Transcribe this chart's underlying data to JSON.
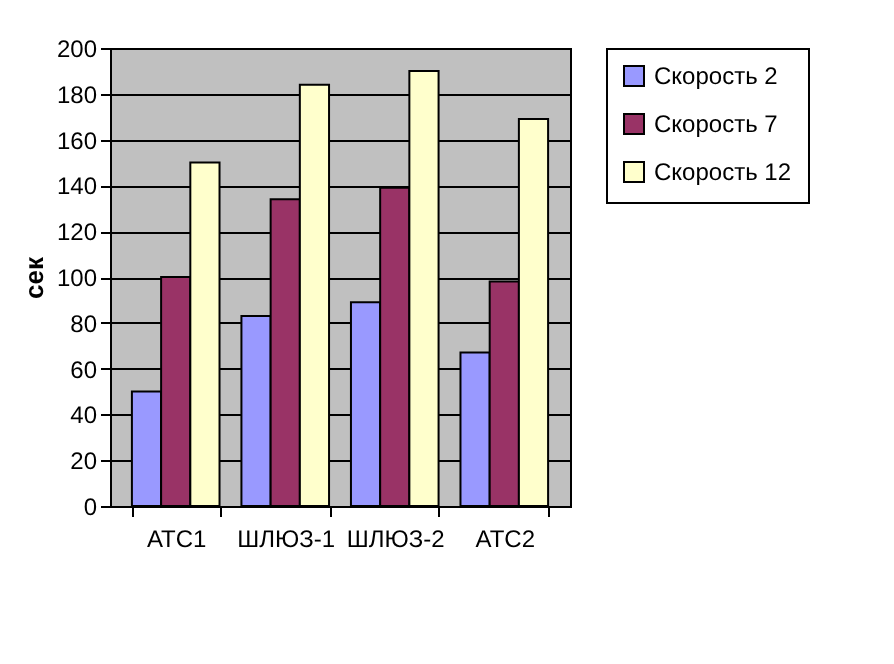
{
  "chart_data": {
    "type": "bar",
    "ylabel": "сек",
    "categories": [
      "АТС1",
      "ШЛЮЗ-1",
      "ШЛЮЗ-2",
      "АТС2"
    ],
    "series": [
      {
        "name": "Скорость 2",
        "color": "#9999ff",
        "values": [
          50,
          83,
          89,
          67
        ]
      },
      {
        "name": "Скорость 7",
        "color": "#993366",
        "values": [
          100,
          134,
          139,
          98
        ]
      },
      {
        "name": "Скорость 12",
        "color": "#ffffcc",
        "values": [
          150,
          184,
          190,
          169
        ]
      }
    ],
    "ylim": [
      0,
      200
    ],
    "yticks": [
      0,
      20,
      40,
      60,
      80,
      100,
      120,
      140,
      160,
      180,
      200
    ],
    "grid": "y",
    "legend": "right"
  }
}
